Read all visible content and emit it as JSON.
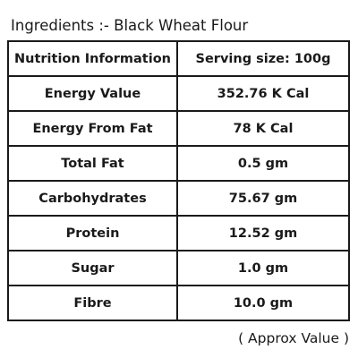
{
  "ingredients": {
    "label": "Ingredients :-",
    "value": "Black Wheat Flour"
  },
  "table": {
    "header": {
      "left": "Nutrition Information",
      "right": "Serving size: 100g"
    },
    "rows": [
      {
        "name": "Energy Value",
        "value": "352.76 K Cal"
      },
      {
        "name": "Energy From Fat",
        "value": "78 K Cal"
      },
      {
        "name": "Total Fat",
        "value": "0.5 gm"
      },
      {
        "name": "Carbohydrates",
        "value": "75.67 gm"
      },
      {
        "name": "Protein",
        "value": "12.52 gm"
      },
      {
        "name": "Sugar",
        "value": "1.0 gm"
      },
      {
        "name": "Fibre",
        "value": "10.0 gm"
      }
    ]
  },
  "note": "( Approx Value )"
}
